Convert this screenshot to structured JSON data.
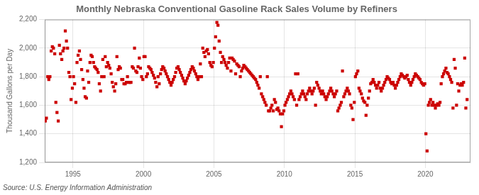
{
  "chart_data": {
    "type": "scatter",
    "title": "Monthly Nebraska Conventional Gasoline Rack Sales Volume by Refiners",
    "y_label": "Thousand Gallons per Day",
    "annotations": [
      "Source: U.S. Energy Information Administration"
    ],
    "color": "#CC0000",
    "marker": "square",
    "grid": true,
    "xlim": [
      1993.0,
      2023.2
    ],
    "xticks": [
      1995,
      2000,
      2005,
      2010,
      2015,
      2020
    ],
    "ylim": [
      1200,
      2200
    ],
    "yticks": [
      {
        "value": 1200,
        "label": "1,200"
      },
      {
        "value": 1400,
        "label": "1,400"
      },
      {
        "value": 1600,
        "label": "1,600"
      },
      {
        "value": 1800,
        "label": "1,800"
      },
      {
        "value": 2000,
        "label": "2,000"
      },
      {
        "value": 2200,
        "label": "2,200"
      }
    ],
    "x": [
      1993.04,
      1993.12,
      1993.21,
      1993.29,
      1993.37,
      1993.46,
      1993.54,
      1993.62,
      1993.71,
      1993.79,
      1993.87,
      1993.96,
      1994.04,
      1994.12,
      1994.21,
      1994.29,
      1994.37,
      1994.46,
      1994.54,
      1994.62,
      1994.71,
      1994.79,
      1994.87,
      1994.96,
      1995.04,
      1995.12,
      1995.21,
      1995.29,
      1995.37,
      1995.46,
      1995.54,
      1995.62,
      1995.71,
      1995.79,
      1995.87,
      1995.96,
      1996.04,
      1996.12,
      1996.21,
      1996.29,
      1996.37,
      1996.46,
      1996.54,
      1996.62,
      1996.71,
      1996.79,
      1996.87,
      1996.96,
      1997.04,
      1997.12,
      1997.21,
      1997.29,
      1997.37,
      1997.46,
      1997.54,
      1997.62,
      1997.71,
      1997.79,
      1997.87,
      1997.96,
      1998.04,
      1998.12,
      1998.21,
      1998.29,
      1998.37,
      1998.46,
      1998.54,
      1998.62,
      1998.71,
      1998.79,
      1998.87,
      1998.96,
      1999.04,
      1999.12,
      1999.21,
      1999.29,
      1999.37,
      1999.46,
      1999.54,
      1999.62,
      1999.71,
      1999.79,
      1999.87,
      1999.96,
      2000.04,
      2000.12,
      2000.21,
      2000.29,
      2000.37,
      2000.46,
      2000.54,
      2000.62,
      2000.71,
      2000.79,
      2000.87,
      2000.96,
      2001.04,
      2001.12,
      2001.21,
      2001.29,
      2001.37,
      2001.46,
      2001.54,
      2001.62,
      2001.71,
      2001.79,
      2001.87,
      2001.96,
      2002.04,
      2002.12,
      2002.21,
      2002.29,
      2002.37,
      2002.46,
      2002.54,
      2002.62,
      2002.71,
      2002.79,
      2002.87,
      2002.96,
      2003.04,
      2003.12,
      2003.21,
      2003.29,
      2003.37,
      2003.46,
      2003.54,
      2003.62,
      2003.71,
      2003.79,
      2003.87,
      2003.96,
      2004.04,
      2004.12,
      2004.21,
      2004.29,
      2004.37,
      2004.46,
      2004.54,
      2004.62,
      2004.71,
      2004.79,
      2004.87,
      2004.96,
      2005.04,
      2005.12,
      2005.21,
      2005.29,
      2005.37,
      2005.46,
      2005.54,
      2005.62,
      2005.71,
      2005.79,
      2005.87,
      2005.96,
      2006.04,
      2006.12,
      2006.21,
      2006.29,
      2006.37,
      2006.46,
      2006.54,
      2006.62,
      2006.71,
      2006.79,
      2006.87,
      2006.96,
      2007.04,
      2007.12,
      2007.21,
      2007.29,
      2007.37,
      2007.46,
      2007.54,
      2007.62,
      2007.71,
      2007.79,
      2007.87,
      2007.96,
      2008.04,
      2008.12,
      2008.21,
      2008.29,
      2008.37,
      2008.46,
      2008.54,
      2008.62,
      2008.71,
      2008.79,
      2008.87,
      2008.96,
      2009.04,
      2009.12,
      2009.21,
      2009.29,
      2009.37,
      2009.46,
      2009.54,
      2009.62,
      2009.71,
      2009.79,
      2009.87,
      2009.96,
      2010.04,
      2010.12,
      2010.21,
      2010.29,
      2010.37,
      2010.46,
      2010.54,
      2010.62,
      2010.71,
      2010.79,
      2010.87,
      2010.96,
      2011.04,
      2011.12,
      2011.21,
      2011.29,
      2011.37,
      2011.46,
      2011.54,
      2011.62,
      2011.71,
      2011.79,
      2011.87,
      2011.96,
      2012.04,
      2012.12,
      2012.21,
      2012.29,
      2012.37,
      2012.46,
      2012.54,
      2012.62,
      2012.71,
      2012.79,
      2012.87,
      2012.96,
      2013.04,
      2013.12,
      2013.21,
      2013.29,
      2013.37,
      2013.46,
      2013.54,
      2013.62,
      2013.71,
      2013.79,
      2013.87,
      2013.96,
      2014.04,
      2014.12,
      2014.21,
      2014.29,
      2014.37,
      2014.46,
      2014.54,
      2014.62,
      2014.71,
      2014.79,
      2014.87,
      2014.96,
      2015.04,
      2015.12,
      2015.21,
      2015.29,
      2015.37,
      2015.46,
      2015.54,
      2015.62,
      2015.71,
      2015.79,
      2015.87,
      2015.96,
      2016.04,
      2016.12,
      2016.21,
      2016.29,
      2016.37,
      2016.46,
      2016.54,
      2016.62,
      2016.71,
      2016.79,
      2016.87,
      2016.96,
      2017.04,
      2017.12,
      2017.21,
      2017.29,
      2017.37,
      2017.46,
      2017.54,
      2017.62,
      2017.71,
      2017.79,
      2017.87,
      2017.96,
      2018.04,
      2018.12,
      2018.21,
      2018.29,
      2018.37,
      2018.46,
      2018.54,
      2018.62,
      2018.71,
      2018.79,
      2018.87,
      2018.96,
      2019.04,
      2019.12,
      2019.21,
      2019.29,
      2019.37,
      2019.46,
      2019.54,
      2019.62,
      2019.71,
      2019.79,
      2019.87,
      2019.96,
      2020.04,
      2020.12,
      2020.21,
      2020.29,
      2020.37,
      2020.46,
      2020.54,
      2020.62,
      2020.71,
      2020.79,
      2020.87,
      2020.96,
      2021.04,
      2021.12,
      2021.21,
      2021.29,
      2021.37,
      2021.46,
      2021.54,
      2021.62,
      2021.71,
      2021.79,
      2021.87,
      2021.96,
      2022.04,
      2022.12,
      2022.21,
      2022.29,
      2022.37,
      2022.46,
      2022.54,
      2022.62,
      2022.71,
      2022.79,
      2022.87,
      2022.96
    ],
    "values": [
      1490,
      1510,
      1800,
      1780,
      1800,
      1980,
      2010,
      2000,
      1960,
      1620,
      1550,
      1490,
      2020,
      1960,
      1920,
      1980,
      2000,
      2120,
      2050,
      2000,
      1830,
      1800,
      1640,
      1720,
      1800,
      1750,
      1620,
      1900,
      1950,
      1980,
      1920,
      1850,
      1780,
      1720,
      1660,
      1650,
      1840,
      1760,
      1900,
      1950,
      1940,
      1900,
      1870,
      1860,
      1850,
      1830,
      1750,
      1700,
      1800,
      1920,
      1800,
      1940,
      1870,
      1900,
      1880,
      1860,
      1820,
      1760,
      1730,
      1700,
      1750,
      1940,
      1850,
      1870,
      1860,
      1780,
      1780,
      1750,
      1750,
      1760,
      1800,
      1760,
      1760,
      1760,
      1870,
      1860,
      2000,
      1840,
      1830,
      1870,
      1930,
      1860,
      1800,
      1780,
      1940,
      1940,
      1800,
      1820,
      1870,
      1860,
      1850,
      1830,
      1810,
      1790,
      1760,
      1730,
      1800,
      1750,
      1820,
      1850,
      1870,
      1860,
      1840,
      1820,
      1800,
      1780,
      1760,
      1740,
      1760,
      1780,
      1800,
      1830,
      1860,
      1870,
      1850,
      1830,
      1810,
      1790,
      1770,
      1750,
      1770,
      1790,
      1810,
      1830,
      1850,
      1870,
      1860,
      1840,
      1820,
      1800,
      1780,
      1800,
      1890,
      1800,
      2000,
      1970,
      1940,
      1980,
      1990,
      1960,
      1900,
      1880,
      1870,
      1900,
      2000,
      2080,
      2180,
      2160,
      2050,
      1970,
      1900,
      1940,
      1920,
      1900,
      1880,
      1860,
      1900,
      1930,
      1840,
      1930,
      1920,
      1910,
      1820,
      1890,
      1880,
      1870,
      1800,
      1840,
      1860,
      1880,
      1870,
      1860,
      1850,
      1840,
      1830,
      1820,
      1810,
      1800,
      1790,
      1780,
      1760,
      1740,
      1720,
      1800,
      1680,
      1660,
      1640,
      1620,
      1600,
      1800,
      1560,
      1560,
      1580,
      1600,
      1560,
      1640,
      1620,
      1570,
      1580,
      1560,
      1540,
      1450,
      1540,
      1560,
      1600,
      1620,
      1640,
      1660,
      1680,
      1700,
      1680,
      1660,
      1640,
      1820,
      1600,
      1820,
      1640,
      1660,
      1680,
      1700,
      1680,
      1660,
      1640,
      1680,
      1700,
      1720,
      1700,
      1680,
      1700,
      1720,
      1600,
      1760,
      1740,
      1720,
      1700,
      1680,
      1700,
      1680,
      1660,
      1640,
      1660,
      1680,
      1700,
      1720,
      1700,
      1680,
      1660,
      1680,
      1700,
      1560,
      1580,
      1600,
      1620,
      1840,
      1660,
      1680,
      1700,
      1720,
      1700,
      1680,
      1600,
      1580,
      1500,
      1620,
      1800,
      1820,
      1840,
      1720,
      1700,
      1680,
      1650,
      1630,
      1620,
      1530,
      1600,
      1650,
      1700,
      1750,
      1760,
      1780,
      1760,
      1740,
      1720,
      1740,
      1760,
      1720,
      1700,
      1720,
      1740,
      1760,
      1780,
      1800,
      1790,
      1780,
      1760,
      1750,
      1760,
      1740,
      1720,
      1740,
      1760,
      1780,
      1800,
      1820,
      1810,
      1800,
      1790,
      1800,
      1810,
      1780,
      1760,
      1740,
      1760,
      1780,
      1800,
      1820,
      1810,
      1800,
      1790,
      1780,
      1760,
      1750,
      1740,
      1750,
      1400,
      1280,
      1600,
      1620,
      1640,
      1600,
      1620,
      1600,
      1580,
      1600,
      1610,
      1600,
      1620,
      1750,
      1800,
      1820,
      1840,
      1860,
      1830,
      1820,
      1800,
      1780,
      1760,
      1580,
      1920,
      1860,
      1600,
      1750,
      1700,
      1740,
      1750,
      1740,
      1760,
      1930,
      1580,
      1640
    ]
  }
}
